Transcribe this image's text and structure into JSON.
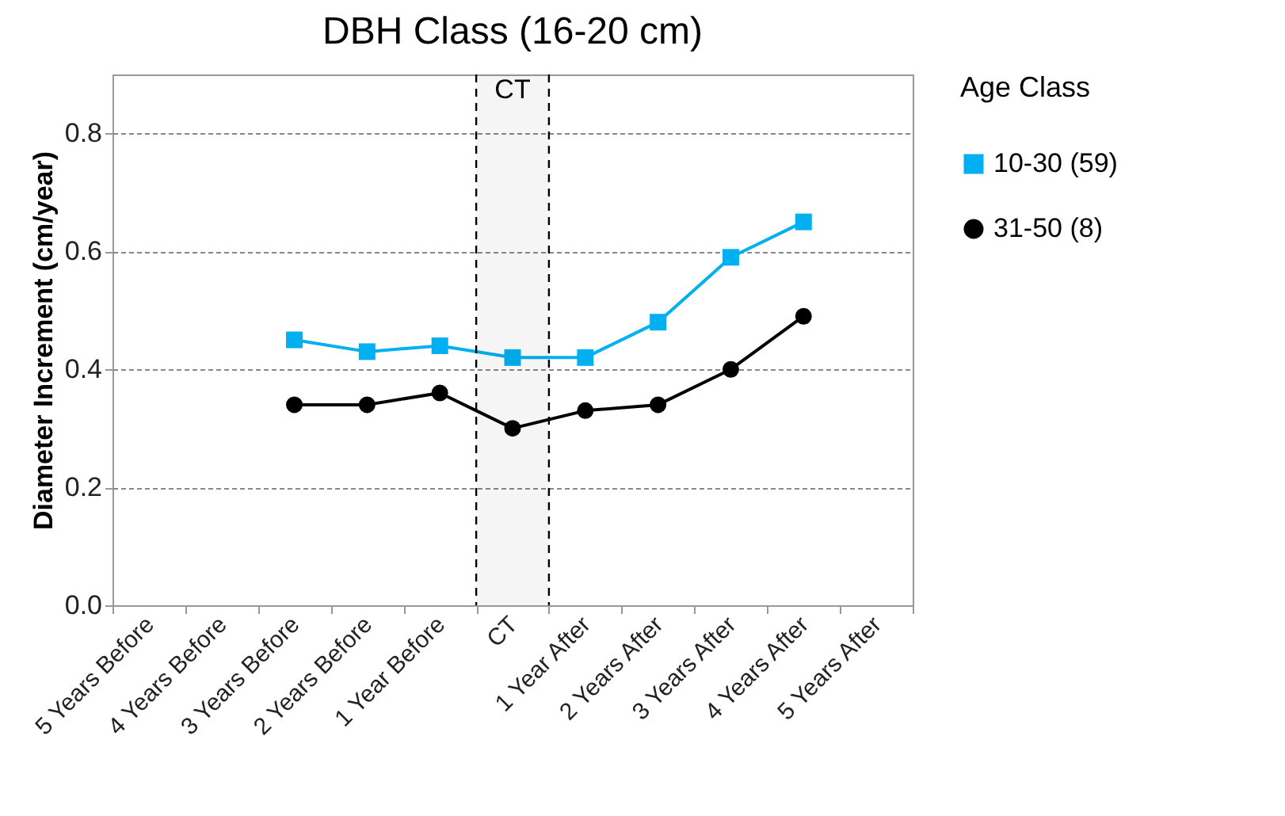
{
  "chart_data": {
    "type": "line",
    "title": "DBH Class (16-20 cm)",
    "ylabel": "Diameter Increment (cm/year)",
    "legend_title": "Age Class",
    "categories": [
      "5 Years Before",
      "4 Years Before",
      "3 Years Before",
      "2 Years Before",
      "1 Year Before",
      "CT",
      "1 Year After",
      "2 Years After",
      "3 Years After",
      "4 Years After",
      "5 Years After"
    ],
    "series": [
      {
        "name": "10-30 (59)",
        "color": "#00b0f0",
        "marker": "square",
        "values": [
          null,
          null,
          0.45,
          0.43,
          0.44,
          0.42,
          0.42,
          0.48,
          0.59,
          0.65,
          null
        ]
      },
      {
        "name": "31-50 (8)",
        "color": "#000000",
        "marker": "circle",
        "values": [
          null,
          null,
          0.34,
          0.34,
          0.36,
          0.3,
          0.33,
          0.34,
          0.4,
          0.49,
          null
        ]
      }
    ],
    "ylim": [
      0,
      0.9
    ],
    "yticks": [
      {
        "value": 0,
        "label": "0.0"
      },
      {
        "value": 0.2,
        "label": "0.2"
      },
      {
        "value": 0.4,
        "label": "0.4"
      },
      {
        "value": 0.6,
        "label": "0.6"
      },
      {
        "value": 0.8,
        "label": "0.8"
      }
    ],
    "grid": "y",
    "legend": "right",
    "line_style": "solid",
    "bands": [
      {
        "axis": "x",
        "from": "CT",
        "to": "CT",
        "label": "CT",
        "color": "#000000"
      }
    ]
  }
}
